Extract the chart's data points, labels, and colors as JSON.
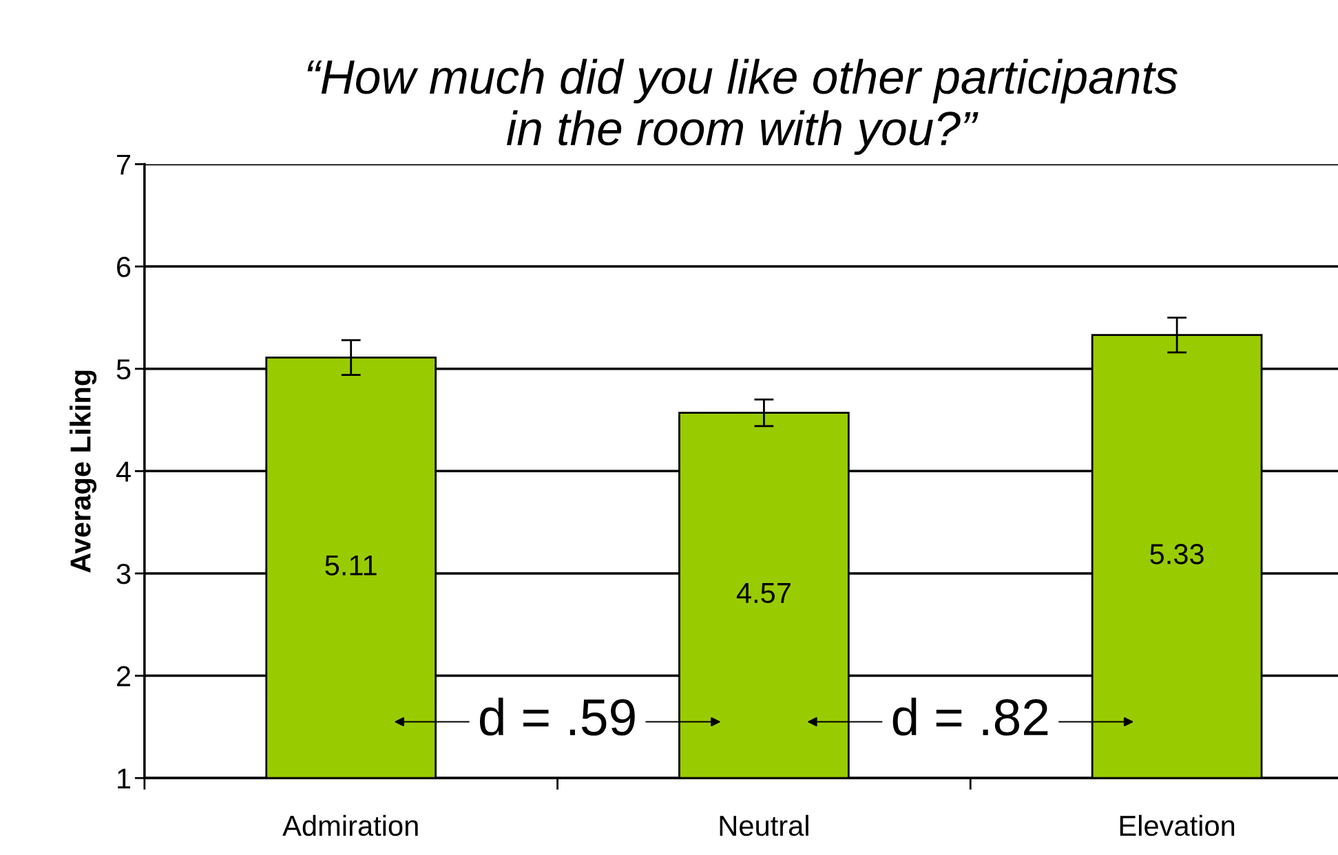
{
  "chart_data": {
    "type": "bar",
    "title": "“How much did you like other participants\nin the room with you?”",
    "ylabel": "Average Liking",
    "categories": [
      "Admiration",
      "Neutral",
      "Elevation"
    ],
    "values": [
      5.11,
      4.57,
      5.33
    ],
    "errors": [
      0.17,
      0.13,
      0.17
    ],
    "color": "#99cc00",
    "ylim": [
      1,
      7
    ],
    "yticks": [
      1,
      2,
      3,
      4,
      5,
      6,
      7
    ],
    "grid": "y",
    "data_labels": true,
    "annotations": [
      "d = .59",
      "d = .82"
    ]
  }
}
